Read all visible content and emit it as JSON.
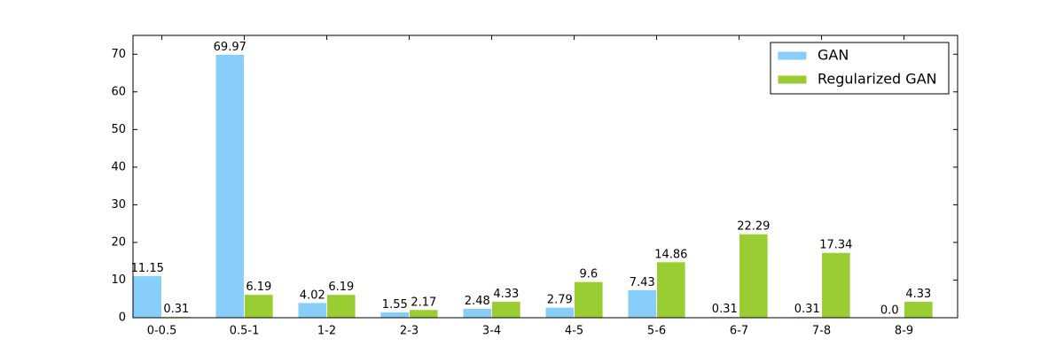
{
  "chart_data": {
    "type": "bar",
    "categories": [
      "0-0.5",
      "0.5-1",
      "1-2",
      "2-3",
      "3-4",
      "4-5",
      "5-6",
      "6-7",
      "7-8",
      "8-9"
    ],
    "series": [
      {
        "name": "GAN",
        "color": "#87cefa",
        "values": [
          11.15,
          69.97,
          4.02,
          1.55,
          2.48,
          2.79,
          7.43,
          0.31,
          0.31,
          0
        ],
        "value_labels": [
          "11.15",
          "69.97",
          "4.02",
          "1.55",
          "2.48",
          "2.79",
          "7.43",
          "0.31",
          "0.31",
          "0.0"
        ]
      },
      {
        "name": "Regularized GAN",
        "color": "#9acd32",
        "values": [
          0.31,
          6.19,
          6.19,
          2.17,
          4.33,
          9.6,
          14.86,
          22.29,
          17.34,
          4.33
        ]
      }
    ],
    "ylim": [
      0,
      75
    ],
    "yticks": [
      0,
      10,
      20,
      30,
      40,
      50,
      60,
      70
    ],
    "legend": "upper right",
    "grid": false
  }
}
